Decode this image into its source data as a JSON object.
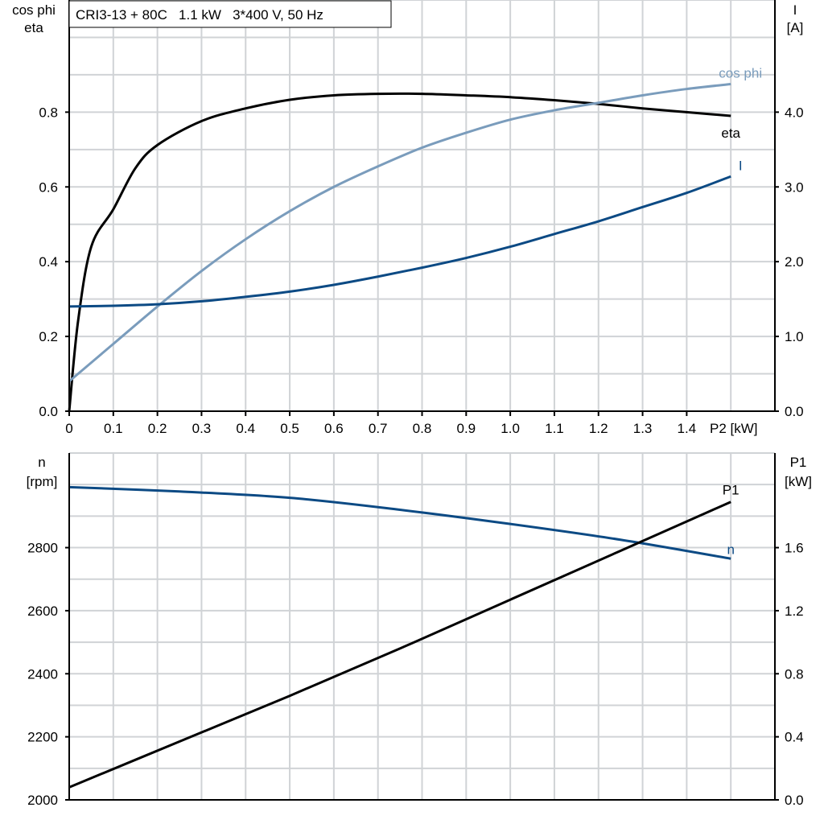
{
  "chart_data": [
    {
      "type": "line",
      "title": "CRI3-13 + 80C   1.1 kW   3*400 V, 50 Hz",
      "xlabel": "P2 [kW]",
      "ylabel_left": [
        "cos phi",
        "eta"
      ],
      "ylabel_right": [
        "I",
        "[A]"
      ],
      "xlim": [
        0,
        1.6
      ],
      "ylim_left": [
        0,
        1.1
      ],
      "ylim_right": [
        0,
        5.5
      ],
      "x_ticks": [
        "0",
        "0.1",
        "0.2",
        "0.3",
        "0.4",
        "0.5",
        "0.6",
        "0.7",
        "0.8",
        "0.9",
        "1.0",
        "1.1",
        "1.2",
        "1.3",
        "1.4"
      ],
      "y_ticks_left": [
        "0.0",
        "0.2",
        "0.4",
        "0.6",
        "0.8"
      ],
      "y_ticks_right": [
        "0.0",
        "1.0",
        "2.0",
        "3.0",
        "4.0"
      ],
      "grid": true,
      "series": [
        {
          "name": "eta",
          "axis": "left",
          "color": "#000000",
          "x": [
            0,
            0.02,
            0.05,
            0.1,
            0.15,
            0.2,
            0.3,
            0.4,
            0.5,
            0.6,
            0.7,
            0.8,
            0.9,
            1.0,
            1.1,
            1.2,
            1.3,
            1.4,
            1.5
          ],
          "y": [
            0,
            0.24,
            0.44,
            0.54,
            0.65,
            0.712,
            0.776,
            0.81,
            0.833,
            0.845,
            0.849,
            0.849,
            0.845,
            0.84,
            0.832,
            0.822,
            0.81,
            0.8,
            0.79
          ]
        },
        {
          "name": "cos phi",
          "axis": "left",
          "color": "#7a9cbc",
          "x": [
            0,
            0.1,
            0.2,
            0.3,
            0.4,
            0.5,
            0.6,
            0.7,
            0.8,
            0.9,
            1.0,
            1.1,
            1.2,
            1.3,
            1.4,
            1.5
          ],
          "y": [
            0.08,
            0.18,
            0.28,
            0.375,
            0.46,
            0.535,
            0.6,
            0.655,
            0.705,
            0.745,
            0.78,
            0.805,
            0.825,
            0.845,
            0.862,
            0.875
          ]
        },
        {
          "name": "I",
          "axis": "right",
          "color": "#0c4a84",
          "x": [
            0,
            0.1,
            0.2,
            0.3,
            0.4,
            0.5,
            0.6,
            0.7,
            0.8,
            0.9,
            1.0,
            1.1,
            1.2,
            1.3,
            1.4,
            1.5
          ],
          "y": [
            1.4,
            1.41,
            1.43,
            1.47,
            1.53,
            1.6,
            1.69,
            1.8,
            1.92,
            2.05,
            2.2,
            2.37,
            2.54,
            2.73,
            2.92,
            3.14
          ]
        }
      ]
    },
    {
      "type": "line",
      "xlim": [
        0,
        1.6
      ],
      "ylabel_left": [
        "n",
        "[rpm]"
      ],
      "ylabel_right": [
        "P1",
        "[kW]"
      ],
      "ylim_left": [
        2000,
        3100
      ],
      "ylim_right": [
        0,
        2.2
      ],
      "y_ticks_left": [
        "2000",
        "2200",
        "2400",
        "2600",
        "2800"
      ],
      "y_ticks_right": [
        "0.0",
        "0.4",
        "0.8",
        "1.2",
        "1.6"
      ],
      "grid": true,
      "series": [
        {
          "name": "n",
          "axis": "left",
          "color": "#0c4a84",
          "x": [
            0,
            0.25,
            0.5,
            0.75,
            1.0,
            1.25,
            1.5
          ],
          "y": [
            2992,
            2978,
            2958,
            2920,
            2875,
            2825,
            2765
          ]
        },
        {
          "name": "P1",
          "axis": "right",
          "color": "#000000",
          "x": [
            0,
            0.25,
            0.5,
            0.75,
            1.0,
            1.25,
            1.5
          ],
          "y": [
            0.08,
            0.37,
            0.66,
            0.96,
            1.27,
            1.58,
            1.89
          ]
        }
      ]
    }
  ]
}
